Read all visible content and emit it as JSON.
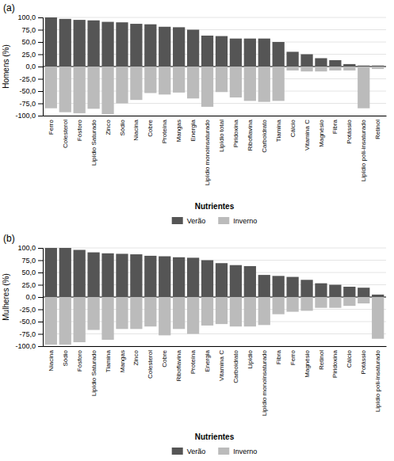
{
  "chart_data": [
    {
      "type": "bar",
      "title": "(a)",
      "ylabel": "Homens (%)",
      "xlabel": "Nutrientes",
      "categories": [
        "Ferro",
        "Colesterol",
        "Fósforo",
        "Lipídio Saturado",
        "Zinco",
        "Sódio",
        "Niacina",
        "Cobre",
        "Proteína",
        "Mangas",
        "Energia",
        "Lipídio monoinsaturado",
        "Lipídio total",
        "Piridoxina",
        "Riboflavina",
        "Carboidrato",
        "Tiamina",
        "Cálcio",
        "Vitamina C",
        "Magnésio",
        "Fibra",
        "Potássio",
        "Lipídio poli-insaturado",
        "Retinol"
      ],
      "series": [
        {
          "name": "Verão",
          "color": "#555555",
          "values": [
            100,
            97,
            95,
            94,
            91,
            90,
            87,
            86,
            81,
            80,
            75,
            63,
            62,
            57,
            57,
            57,
            50,
            30,
            25,
            17,
            13,
            5,
            2,
            2
          ]
        },
        {
          "name": "Inverno",
          "color": "#bbbbbb",
          "values": [
            -85,
            -93,
            -95,
            -86,
            -97,
            -75,
            -68,
            -54,
            -57,
            -53,
            -65,
            -82,
            -52,
            -63,
            -70,
            -72,
            -70,
            -8,
            -10,
            -10,
            -8,
            -8,
            -85,
            -5
          ]
        }
      ],
      "stacked": true,
      "ylim": [
        -100,
        100
      ],
      "yticks": [
        {
          "value": -100,
          "label": "-100,0"
        },
        {
          "value": -75,
          "label": "-75,0"
        },
        {
          "value": -50,
          "label": "-50,0"
        },
        {
          "value": -25,
          "label": "-25,0"
        },
        {
          "value": 0,
          "label": "0,0"
        },
        {
          "value": 25,
          "label": "25,0"
        },
        {
          "value": 50,
          "label": "50,0"
        },
        {
          "value": 75,
          "label": "75,0"
        },
        {
          "value": 100,
          "label": "100,0"
        }
      ],
      "grid": true,
      "legend": "bottom"
    },
    {
      "type": "bar",
      "title": "(b)",
      "ylabel": "Mulheres (%)",
      "xlabel": "Nutrientes",
      "categories": [
        "Niacina",
        "Sódio",
        "Fósforo",
        "Lipídio Saturado",
        "Tiamina",
        "Mangas",
        "Zinco",
        "Colesterol",
        "Cobre",
        "Riboflavina",
        "Proteína",
        "Energia",
        "Vitamina C",
        "Carboidrato",
        "Lipídio",
        "Lipídio monoinsaturado",
        "Fibra",
        "Ferro",
        "Magnésio",
        "Retinol",
        "Piridoxina",
        "Cálcio",
        "Potássio",
        "Lipídio poli-insaturado"
      ],
      "series": [
        {
          "name": "Verão",
          "color": "#555555",
          "values": [
            100,
            100,
            96,
            91,
            89,
            88,
            87,
            84,
            83,
            81,
            80,
            75,
            69,
            65,
            63,
            45,
            43,
            41,
            35,
            28,
            25,
            21,
            19,
            5
          ]
        },
        {
          "name": "Inverno",
          "color": "#bbbbbb",
          "values": [
            -97,
            -97,
            -92,
            -67,
            -87,
            -65,
            -65,
            -60,
            -78,
            -65,
            -75,
            -58,
            -55,
            -60,
            -60,
            -57,
            -35,
            -30,
            -28,
            -22,
            -22,
            -18,
            -13,
            -85
          ]
        }
      ],
      "stacked": true,
      "ylim": [
        -100,
        100
      ],
      "yticks": [
        {
          "value": -100,
          "label": "-100,0"
        },
        {
          "value": -75,
          "label": "-75,0"
        },
        {
          "value": -50,
          "label": "-50,0"
        },
        {
          "value": -25,
          "label": "-25,0"
        },
        {
          "value": 0,
          "label": "0,0"
        },
        {
          "value": 25,
          "label": "25,0"
        },
        {
          "value": 50,
          "label": "50,0"
        },
        {
          "value": 75,
          "label": "75,0"
        },
        {
          "value": 100,
          "label": "100,0"
        }
      ],
      "grid": true,
      "legend": "bottom"
    }
  ]
}
